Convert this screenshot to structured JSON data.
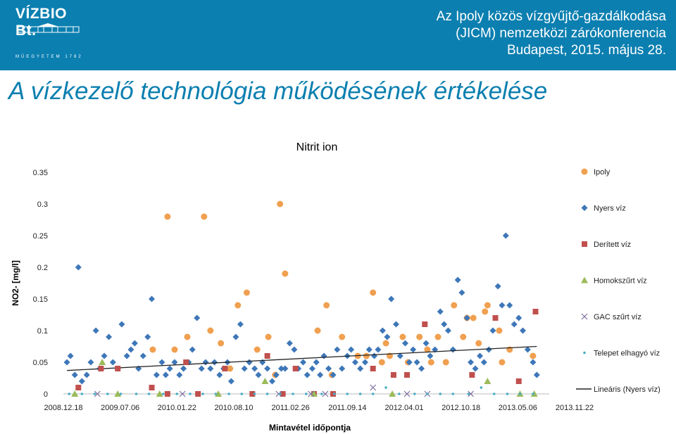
{
  "header": {
    "logo_text": "VÍZBIO Bt.",
    "logo_sub": "MŰEGYETEM 1782",
    "conference_lines": [
      "Az Ipoly közös vízgyűjtő-gazdálkodása",
      "(JICM) nemzetközi zárókonferencia",
      "Budapest, 2015. május 28."
    ]
  },
  "slide_title": "A vízkezelő technológia működésének értékelése",
  "colors": {
    "header_bg": "#0b7fb0",
    "ipoly": "#f0a050",
    "nyers": "#3e77b8",
    "deritett": "#c0504d",
    "homok": "#9bbb59",
    "gac": "#7b6b9e",
    "telepet": "#4bacc6",
    "trend": "#222222"
  },
  "chart_data": {
    "type": "scatter",
    "title": "Nitrit ion",
    "xlabel": "Mintavétel időpontja",
    "ylabel": "NO2- [mg/l]",
    "x_ticks": [
      "2008.12.18",
      "2009.07.06",
      "2010.01.22",
      "2010.08.10",
      "2011.02.26",
      "2011.09.14",
      "2012.04.01",
      "2012.10.18",
      "2013.05.06",
      "2013.11.22"
    ],
    "xlim": [
      "2008-12-18",
      "2014-03-15"
    ],
    "ylim": [
      0,
      0.35
    ],
    "y_ticks": [
      0,
      0.05,
      0.1,
      0.15,
      0.2,
      0.25,
      0.3,
      0.35
    ],
    "y_tick_labels": [
      "0",
      "0.05",
      "0.1",
      "0.15",
      "0.2",
      "0.25",
      "0.3",
      "0.35"
    ],
    "legend_position": "right",
    "series": [
      {
        "name": "Ipoly",
        "marker": "circle",
        "color": "#f0a050",
        "x": [
          "2009-12-05",
          "2010-02-01",
          "2010-03-01",
          "2010-04-20",
          "2010-06-25",
          "2010-07-20",
          "2010-08-30",
          "2010-10-05",
          "2010-11-05",
          "2010-12-10",
          "2011-01-20",
          "2011-03-05",
          "2011-04-01",
          "2011-04-20",
          "2011-05-10",
          "2011-09-15",
          "2011-10-20",
          "2011-11-10",
          "2011-12-20",
          "2012-02-20",
          "2012-03-25",
          "2012-04-20",
          "2012-05-25",
          "2012-06-10",
          "2012-06-25",
          "2012-08-15",
          "2012-09-05",
          "2012-10-20",
          "2012-11-20",
          "2012-12-05",
          "2013-01-01",
          "2013-02-01",
          "2013-03-05",
          "2013-04-10",
          "2013-04-25",
          "2013-05-20",
          "2013-06-10",
          "2013-07-05",
          "2013-07-15",
          "2013-08-30",
          "2013-09-10",
          "2013-10-10",
          "2014-01-10"
        ],
        "y": [
          0.07,
          0.28,
          0.07,
          0.09,
          0.28,
          0.1,
          0.08,
          0.04,
          0.14,
          0.16,
          0.07,
          0.09,
          0.03,
          0.3,
          0.19,
          0.1,
          0.14,
          0.03,
          0.09,
          0.06,
          0.06,
          0.16,
          0.05,
          0.08,
          0.06,
          0.09,
          0.05,
          0.09,
          0.07,
          0.05,
          0.09,
          0.05,
          0.14,
          0.09,
          0.12,
          0.12,
          0.08,
          0.13,
          0.14,
          0.1,
          0.05,
          0.07,
          0.06
        ]
      },
      {
        "name": "Nyers víz",
        "marker": "diamond",
        "color": "#3e77b8",
        "x": [
          "2009-01-01",
          "2009-01-15",
          "2009-02-01",
          "2009-02-15",
          "2009-03-01",
          "2009-03-20",
          "2009-04-05",
          "2009-04-25",
          "2009-05-10",
          "2009-05-28",
          "2009-06-15",
          "2009-07-01",
          "2009-07-20",
          "2009-08-05",
          "2009-08-25",
          "2009-09-10",
          "2009-09-25",
          "2009-10-10",
          "2009-10-28",
          "2009-11-15",
          "2009-12-01",
          "2009-12-20",
          "2010-01-10",
          "2010-01-25",
          "2010-02-10",
          "2010-03-01",
          "2010-03-20",
          "2010-04-05",
          "2010-04-25",
          "2010-05-10",
          "2010-05-28",
          "2010-06-15",
          "2010-07-01",
          "2010-07-20",
          "2010-08-05",
          "2010-08-25",
          "2010-09-10",
          "2010-09-25",
          "2010-10-10",
          "2010-10-28",
          "2010-11-15",
          "2010-12-01",
          "2010-12-20",
          "2011-01-10",
          "2011-01-25",
          "2011-02-10",
          "2011-03-01",
          "2011-03-20",
          "2011-04-05",
          "2011-04-25",
          "2011-05-10",
          "2011-05-28",
          "2011-06-15",
          "2011-07-01",
          "2011-07-20",
          "2011-08-05",
          "2011-08-25",
          "2011-09-10",
          "2011-09-25",
          "2011-10-10",
          "2011-10-28",
          "2011-11-15",
          "2011-12-01",
          "2011-12-20",
          "2012-01-10",
          "2012-01-25",
          "2012-02-10",
          "2012-03-01",
          "2012-03-20",
          "2012-04-05",
          "2012-04-25",
          "2012-05-10",
          "2012-05-28",
          "2012-06-15",
          "2012-07-01",
          "2012-07-20",
          "2012-08-05",
          "2012-08-25",
          "2012-09-10",
          "2012-09-25",
          "2012-10-10",
          "2012-10-28",
          "2012-11-15",
          "2012-12-01",
          "2012-12-20",
          "2013-01-10",
          "2013-01-25",
          "2013-02-10",
          "2013-03-01",
          "2013-03-20",
          "2013-04-05",
          "2013-04-25",
          "2013-05-10",
          "2013-05-28",
          "2013-06-15",
          "2013-07-01",
          "2013-07-20",
          "2013-08-05",
          "2013-08-25",
          "2013-09-10",
          "2013-09-25",
          "2013-10-10",
          "2013-10-28",
          "2013-11-15",
          "2013-12-01",
          "2013-12-20",
          "2014-01-10",
          "2014-01-25"
        ],
        "y": [
          0.05,
          0.06,
          0.03,
          0.2,
          0.02,
          0.03,
          0.05,
          0.1,
          0.04,
          0.06,
          0.09,
          0.05,
          0.04,
          0.11,
          0.06,
          0.07,
          0.08,
          0.04,
          0.06,
          0.09,
          0.15,
          0.03,
          0.05,
          0.03,
          0.04,
          0.05,
          0.03,
          0.04,
          0.05,
          0.07,
          0.12,
          0.04,
          0.05,
          0.04,
          0.05,
          0.03,
          0.04,
          0.05,
          0.02,
          0.09,
          0.11,
          0.04,
          0.05,
          0.04,
          0.03,
          0.05,
          0.04,
          0.02,
          0.03,
          0.04,
          0.04,
          0.08,
          0.07,
          0.04,
          0.05,
          0.03,
          0.04,
          0.05,
          0.03,
          0.06,
          0.04,
          0.03,
          0.07,
          0.04,
          0.06,
          0.07,
          0.05,
          0.04,
          0.05,
          0.07,
          0.06,
          0.07,
          0.1,
          0.09,
          0.15,
          0.11,
          0.06,
          0.08,
          0.05,
          0.07,
          0.05,
          0.04,
          0.08,
          0.06,
          0.07,
          0.13,
          0.11,
          0.1,
          0.07,
          0.18,
          0.16,
          0.12,
          0.05,
          0.04,
          0.06,
          0.05,
          0.07,
          0.1,
          0.17,
          0.14,
          0.25,
          0.14,
          0.11,
          0.12,
          0.1,
          0.07,
          0.05,
          0.03
        ],
        "trend_name": "Lineáris (Nyers víz)",
        "trend": {
          "x": [
            "2009-01-01",
            "2014-01-25"
          ],
          "y": [
            0.037,
            0.075
          ]
        }
      },
      {
        "name": "Derített víz",
        "marker": "square",
        "color": "#c0504d",
        "x": [
          "2009-02-15",
          "2009-05-15",
          "2009-07-20",
          "2009-12-01",
          "2010-02-01",
          "2010-04-15",
          "2010-06-01",
          "2010-09-15",
          "2011-01-01",
          "2011-03-01",
          "2011-05-01",
          "2011-06-20",
          "2011-09-01",
          "2011-11-15",
          "2012-04-20",
          "2012-07-10",
          "2012-09-01",
          "2012-11-10",
          "2013-05-15",
          "2013-08-15",
          "2013-11-15",
          "2014-01-20"
        ],
        "y": [
          0.01,
          0.04,
          0.04,
          0.01,
          0.0,
          0.05,
          0.0,
          0.04,
          0.0,
          0.06,
          0.0,
          0.04,
          0.0,
          0.0,
          0.04,
          0.03,
          0.03,
          0.11,
          0.03,
          0.12,
          0.02,
          0.13
        ]
      },
      {
        "name": "Homokszűrt víz",
        "marker": "triangle",
        "color": "#9bbb59",
        "x": [
          "2009-02-01",
          "2009-05-20",
          "2009-07-20",
          "2010-01-01",
          "2010-08-20",
          "2011-02-20",
          "2011-09-01",
          "2012-07-05",
          "2013-07-15",
          "2013-11-20",
          "2014-01-15"
        ],
        "y": [
          0.0,
          0.05,
          0.0,
          0.0,
          0.0,
          0.02,
          0.0,
          0.0,
          0.02,
          0.0,
          0.0
        ]
      },
      {
        "name": "GAC szűrt víz",
        "marker": "x",
        "color": "#7b6b9e",
        "x": [
          "2009-05-01",
          "2010-04-01",
          "2011-04-15",
          "2011-08-20",
          "2011-10-15",
          "2012-04-20",
          "2012-09-01",
          "2012-11-20",
          "2013-05-10"
        ],
        "y": [
          0.0,
          0.0,
          0.0,
          0.0,
          0.0,
          0.01,
          0.0,
          0.0,
          0.0
        ]
      },
      {
        "name": "Telepet elhagyó víz",
        "marker": "dot",
        "color": "#4bacc6",
        "x": [
          "2009-01-10",
          "2009-03-01",
          "2009-04-20",
          "2009-06-10",
          "2009-08-01",
          "2009-10-01",
          "2009-11-20",
          "2010-01-15",
          "2010-03-10",
          "2010-05-01",
          "2010-06-20",
          "2010-08-10",
          "2010-10-01",
          "2010-11-20",
          "2011-01-10",
          "2011-03-01",
          "2011-04-20",
          "2011-06-10",
          "2011-08-01",
          "2011-10-01",
          "2011-11-20",
          "2012-01-10",
          "2012-03-01",
          "2012-04-20",
          "2012-06-10",
          "2012-08-01",
          "2012-10-01",
          "2012-11-20",
          "2013-01-10",
          "2013-03-01",
          "2013-05-01",
          "2013-06-20",
          "2013-08-10",
          "2013-10-01",
          "2013-11-20",
          "2014-01-10"
        ],
        "y": [
          0.0,
          0.0,
          0.0,
          0.0,
          0.0,
          0.0,
          0.0,
          0.0,
          0.0,
          0.0,
          0.0,
          0.0,
          0.0,
          0.0,
          0.0,
          0.0,
          0.0,
          0.0,
          0.0,
          0.0,
          0.0,
          0.0,
          0.0,
          0.0,
          0.01,
          0.0,
          0.0,
          0.0,
          0.0,
          0.0,
          0.0,
          0.01,
          0.0,
          0.0,
          0.0,
          0.0
        ]
      }
    ],
    "legend": [
      "Ipoly",
      "Nyers víz",
      "Derített víz",
      "Homokszűrt víz",
      "GAC szűrt víz",
      "Telepet elhagyó víz",
      "Lineáris (Nyers víz)"
    ]
  }
}
